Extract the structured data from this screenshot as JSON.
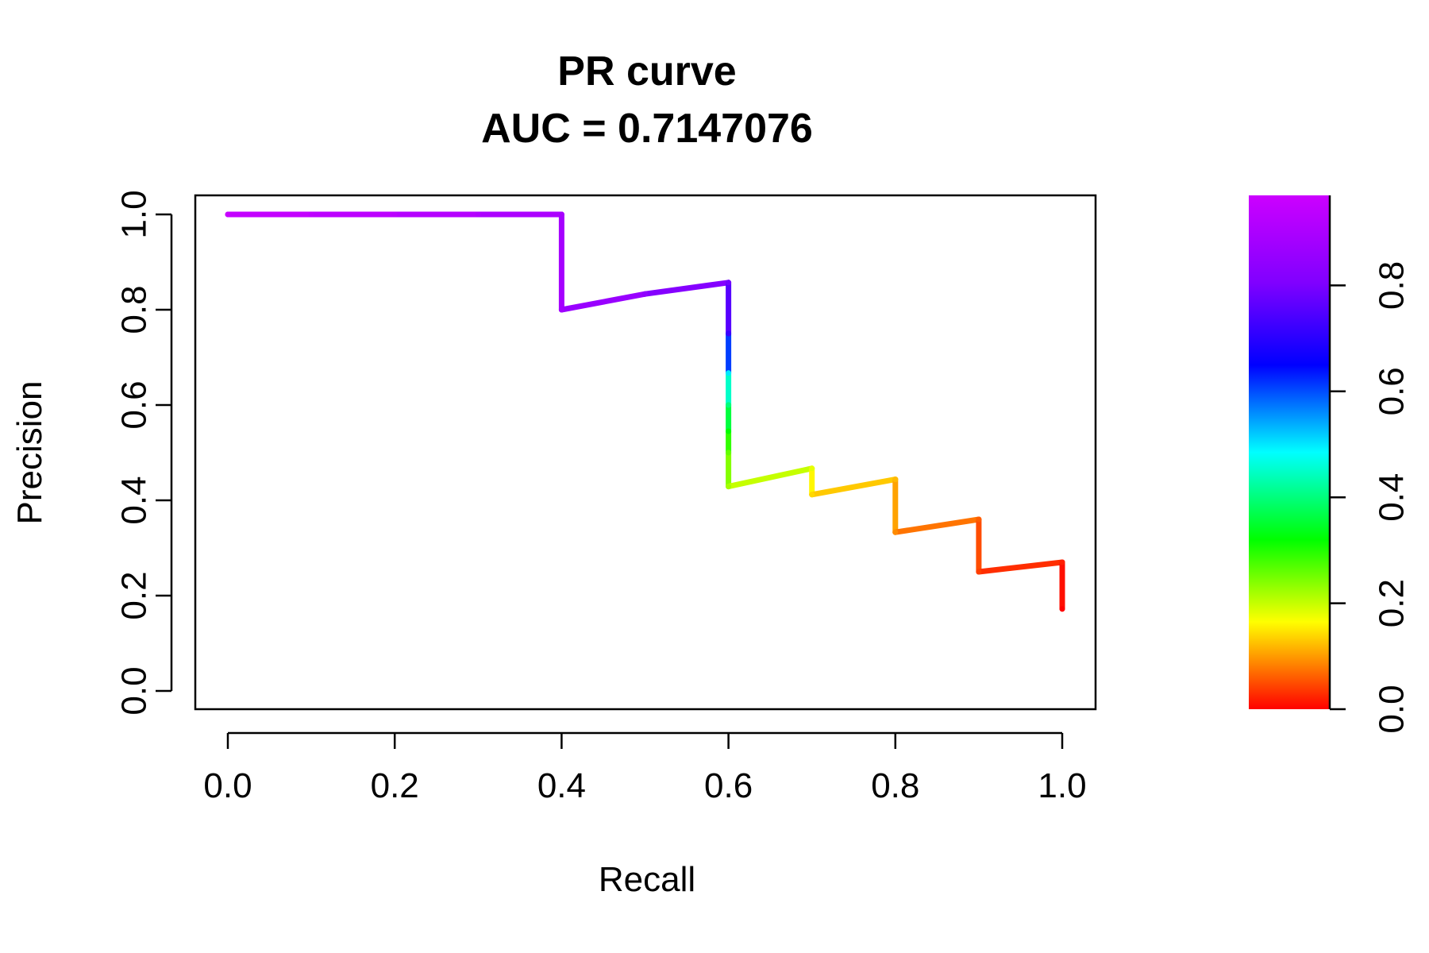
{
  "chart_data": {
    "type": "line",
    "title": "PR curve",
    "subtitle": "AUC = 0.7147076",
    "xlabel": "Recall",
    "ylabel": "Precision",
    "xlim": [
      0,
      1
    ],
    "ylim": [
      0,
      1
    ],
    "x_ticks": [
      "0.0",
      "0.2",
      "0.4",
      "0.6",
      "0.8",
      "1.0"
    ],
    "y_ticks": [
      "0.0",
      "0.2",
      "0.4",
      "0.6",
      "0.8",
      "1.0"
    ],
    "grid": false,
    "colorbar": {
      "range": [
        0,
        0.97
      ],
      "ticks": [
        "0.0",
        "0.2",
        "0.4",
        "0.6",
        "0.8"
      ],
      "palette": "rainbow (red to magenta)"
    },
    "series": [
      {
        "points": [
          {
            "x": 0.0,
            "y": 1.0,
            "score": 0.96
          },
          {
            "x": 0.1,
            "y": 1.0,
            "score": 0.94
          },
          {
            "x": 0.2,
            "y": 1.0,
            "score": 0.93
          },
          {
            "x": 0.3,
            "y": 1.0,
            "score": 0.91
          },
          {
            "x": 0.4,
            "y": 1.0,
            "score": 0.89
          },
          {
            "x": 0.4,
            "y": 0.8,
            "score": 0.88
          },
          {
            "x": 0.5,
            "y": 0.833,
            "score": 0.84
          },
          {
            "x": 0.6,
            "y": 0.857,
            "score": 0.79
          },
          {
            "x": 0.6,
            "y": 0.75,
            "score": 0.72
          },
          {
            "x": 0.6,
            "y": 0.667,
            "score": 0.5
          },
          {
            "x": 0.6,
            "y": 0.6,
            "score": 0.4
          },
          {
            "x": 0.6,
            "y": 0.545,
            "score": 0.32
          },
          {
            "x": 0.6,
            "y": 0.5,
            "score": 0.26
          },
          {
            "x": 0.6,
            "y": 0.429,
            "score": 0.22
          },
          {
            "x": 0.7,
            "y": 0.467,
            "score": 0.18
          },
          {
            "x": 0.7,
            "y": 0.412,
            "score": 0.14
          },
          {
            "x": 0.8,
            "y": 0.444,
            "score": 0.12
          },
          {
            "x": 0.8,
            "y": 0.333,
            "score": 0.09
          },
          {
            "x": 0.9,
            "y": 0.36,
            "score": 0.06
          },
          {
            "x": 0.9,
            "y": 0.25,
            "score": 0.04
          },
          {
            "x": 1.0,
            "y": 0.27,
            "score": 0.02
          },
          {
            "x": 1.0,
            "y": 0.172,
            "score": 0.0
          }
        ]
      }
    ]
  }
}
